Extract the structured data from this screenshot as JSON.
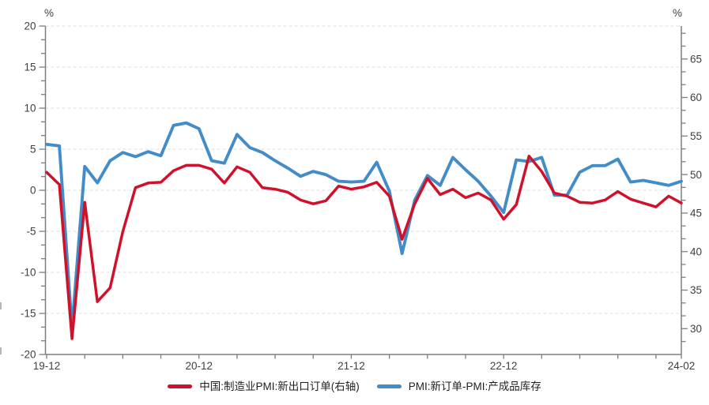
{
  "chart_data": {
    "type": "line",
    "title": "",
    "left_axis": {
      "unit": "%",
      "min": -20,
      "max": 20,
      "major_tick_step": 5,
      "major_ticks": [
        20,
        15,
        10,
        5,
        0,
        -5,
        -10,
        -15,
        -20
      ],
      "minors_between_majors": 2,
      "grid": "horizontal-dashed"
    },
    "right_axis": {
      "unit": "%",
      "min": 26.7,
      "max": 69.3,
      "major_tick_step": 5,
      "major_ticks": [
        65,
        60,
        55,
        50,
        45,
        40,
        35,
        30
      ],
      "minors_between_majors": 2
    },
    "x_axis": {
      "tick_every_months": 3,
      "labels": [
        {
          "index": 0,
          "text": "19-12"
        },
        {
          "index": 12,
          "text": "20-12"
        },
        {
          "index": 24,
          "text": "21-12"
        },
        {
          "index": 36,
          "text": "22-12"
        },
        {
          "index": 50,
          "text": "24-02"
        }
      ]
    },
    "x": [
      "19-12",
      "20-01",
      "20-02",
      "20-03",
      "20-04",
      "20-05",
      "20-06",
      "20-07",
      "20-08",
      "20-09",
      "20-10",
      "20-11",
      "20-12",
      "21-01",
      "21-02",
      "21-03",
      "21-04",
      "21-05",
      "21-06",
      "21-07",
      "21-08",
      "21-09",
      "21-10",
      "21-11",
      "21-12",
      "22-01",
      "22-02",
      "22-03",
      "22-04",
      "22-05",
      "22-06",
      "22-07",
      "22-08",
      "22-09",
      "22-10",
      "22-11",
      "22-12",
      "23-01",
      "23-02",
      "23-03",
      "23-04",
      "23-05",
      "23-06",
      "23-07",
      "23-08",
      "23-09",
      "23-10",
      "23-11",
      "23-12",
      "24-01",
      "24-02"
    ],
    "series": [
      {
        "name": "中国:制造业PMI:新出口订单(右轴)",
        "axis": "right",
        "color": "#D0112B",
        "values": [
          50.3,
          48.7,
          28.7,
          46.4,
          33.5,
          35.3,
          42.6,
          48.3,
          48.9,
          49.0,
          50.5,
          51.2,
          51.2,
          50.7,
          48.9,
          51.0,
          50.3,
          48.3,
          48.1,
          47.7,
          46.7,
          46.2,
          46.6,
          48.5,
          48.1,
          48.4,
          49.0,
          47.2,
          41.6,
          46.2,
          49.5,
          47.4,
          48.1,
          47.0,
          47.6,
          46.7,
          44.2,
          46.1,
          52.4,
          50.4,
          47.6,
          47.2,
          46.4,
          46.3,
          46.7,
          47.8,
          46.8,
          46.3,
          45.8,
          47.2,
          46.3
        ]
      },
      {
        "name": "PMI:新订单-PMI:产成品库存",
        "axis": "left",
        "color": "#428CC7",
        "values": [
          5.6,
          5.4,
          -16.8,
          2.9,
          0.9,
          3.6,
          4.6,
          4.1,
          4.7,
          4.2,
          7.9,
          8.2,
          7.5,
          3.6,
          3.3,
          6.8,
          5.2,
          4.6,
          3.6,
          2.7,
          1.7,
          2.3,
          1.9,
          1.1,
          1.0,
          1.1,
          3.4,
          -0.1,
          -7.7,
          -1.2,
          1.8,
          0.6,
          4.0,
          2.5,
          1.1,
          -0.7,
          -2.7,
          3.7,
          3.5,
          4.0,
          -0.6,
          -0.6,
          2.2,
          3.0,
          3.0,
          3.8,
          1.0,
          1.2,
          0.9,
          0.6,
          1.1
        ]
      }
    ],
    "legend_position": "bottom-center",
    "colors": {
      "axis_line": "#7F7F7F",
      "gridline": "#DCDCDC",
      "tick_label": "#3F3F3F"
    }
  }
}
